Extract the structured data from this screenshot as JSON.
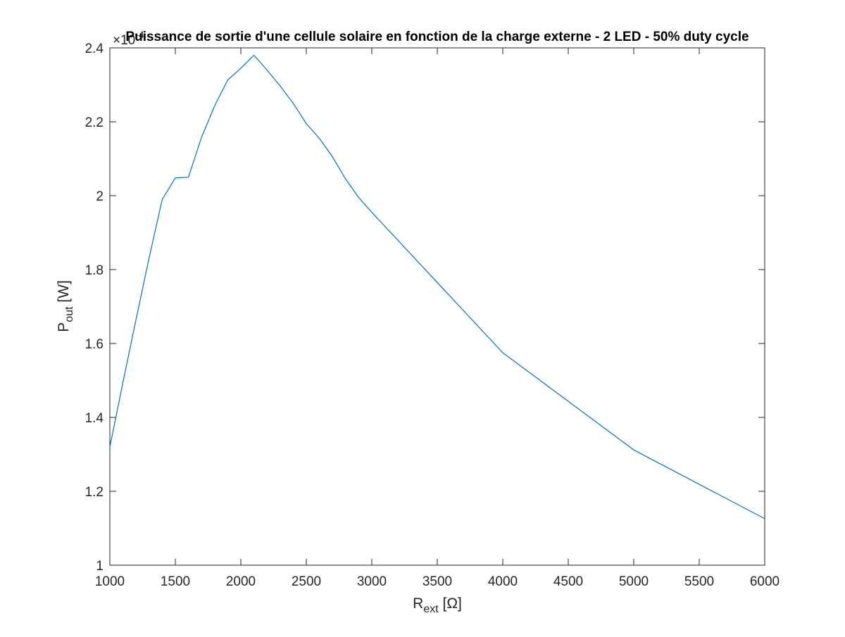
{
  "chart_data": {
    "type": "line",
    "title": "Puissance de sortie d'une cellule solaire en fonction de la charge externe - 2 LED - 50% duty cycle",
    "xlabel": {
      "main": "R",
      "sub": "ext",
      "unit": " [Ω]"
    },
    "ylabel": {
      "main": "P",
      "sub": "out",
      "unit": " [W]"
    },
    "y_exponent": {
      "base": "×10",
      "power": "-4"
    },
    "xlim": [
      1000,
      6000
    ],
    "ylim": [
      1.0,
      2.4
    ],
    "x_ticks": [
      "1000",
      "1500",
      "2000",
      "2500",
      "3000",
      "3500",
      "4000",
      "4500",
      "5000",
      "5500",
      "6000"
    ],
    "y_ticks": [
      "1",
      "1.2",
      "1.4",
      "1.6",
      "1.8",
      "2",
      "2.2",
      "2.4"
    ],
    "grid": false,
    "line_color": "#0072BD",
    "series": [
      {
        "x": [
          1000,
          1100,
          1200,
          1300,
          1400,
          1500,
          1600,
          1700,
          1800,
          1900,
          2000,
          2100,
          2200,
          2300,
          2400,
          2500,
          2600,
          2700,
          2800,
          2900,
          3000,
          4000,
          5000,
          6000
        ],
        "y": [
          1.32,
          1.495,
          1.665,
          1.832,
          1.99,
          2.048,
          2.05,
          2.158,
          2.243,
          2.313,
          2.345,
          2.38,
          2.34,
          2.297,
          2.25,
          2.195,
          2.155,
          2.105,
          2.045,
          1.995,
          1.955,
          1.575,
          1.312,
          1.126
        ]
      }
    ]
  }
}
